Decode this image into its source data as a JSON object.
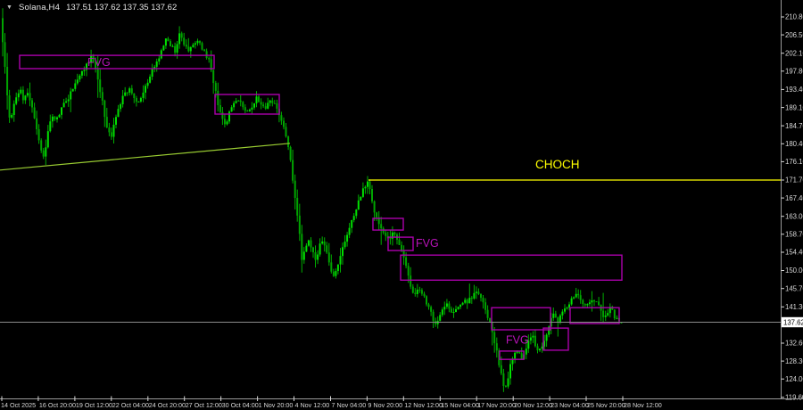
{
  "window": {
    "dropdown_icon": "▼",
    "symbol_period": "Solana,H4",
    "ohlc_text": "137.51 137.62 137.35 137.62"
  },
  "colors": {
    "background": "#000000",
    "candle_up": "#00E000",
    "candle_down": "#00A400",
    "candle_wick": "#00B000",
    "box_border": "#AA00AA",
    "box_label": "#B913B9",
    "choch": "#FFFF00",
    "trendline": "#9ACD32",
    "price_line": "#8A8A8A",
    "axis_text": "#D8D8D8",
    "axis_line": "#9A9A9A",
    "tag_bg": "#FFFFFF",
    "tag_text": "#000000"
  },
  "chart_data": {
    "type": "candlestick",
    "symbol": "Solana",
    "timeframe": "H4",
    "last_bar_ohlc": {
      "open": 137.51,
      "high": 137.62,
      "low": 137.35,
      "close": 137.62
    },
    "current_price": 137.62,
    "ylim": [
      119.6,
      210.8
    ],
    "price_axis": {
      "ticks": [
        210.8,
        206.5,
        202.1,
        197.8,
        193.4,
        189.1,
        184.7,
        180.4,
        176.1,
        171.7,
        167.4,
        163.0,
        158.7,
        154.4,
        150.0,
        145.7,
        141.3,
        137.0,
        132.6,
        128.3,
        124.0,
        119.6
      ],
      "current_tag": "137.62"
    },
    "time_axis": {
      "labels": [
        "14 Oct 2025",
        "16 Oct 20:00",
        "19 Oct 12:00",
        "22 Oct 04:00",
        "24 Oct 20:00",
        "27 Oct 12:00",
        "30 Oct 04:00",
        "1 Nov 20:00",
        "4 Nov 12:00",
        "7 Nov 04:00",
        "9 Nov 20:00",
        "12 Nov 12:00",
        "15 Nov 04:00",
        "17 Nov 20:00",
        "20 Nov 12:00",
        "23 Nov 04:00",
        "25 Nov 20:00",
        "28 Nov 12:00"
      ]
    },
    "bars": {
      "count": 274,
      "first_x": 2,
      "last_x": 698,
      "seed": 11
    },
    "series_anchors": [
      [
        2,
        210.5
      ],
      [
        4,
        206
      ],
      [
        7,
        199
      ],
      [
        10,
        191
      ],
      [
        13,
        185.5
      ],
      [
        16,
        188.5
      ],
      [
        20,
        192
      ],
      [
        24,
        193.5
      ],
      [
        28,
        191
      ],
      [
        32,
        193.5
      ],
      [
        36,
        190
      ],
      [
        40,
        187
      ],
      [
        44,
        182.5
      ],
      [
        48,
        178.5
      ],
      [
        51,
        177.5
      ],
      [
        55,
        183
      ],
      [
        60,
        187.5
      ],
      [
        64,
        186
      ],
      [
        68,
        187.5
      ],
      [
        72,
        189.5
      ],
      [
        77,
        191
      ],
      [
        82,
        193
      ],
      [
        87,
        195.5
      ],
      [
        93,
        197.5
      ],
      [
        99,
        199.5
      ],
      [
        104,
        201.5
      ],
      [
        108,
        199
      ],
      [
        112,
        195
      ],
      [
        117,
        189.5
      ],
      [
        122,
        183.5
      ],
      [
        126,
        182
      ],
      [
        130,
        186
      ],
      [
        135,
        189.5
      ],
      [
        140,
        192
      ],
      [
        146,
        193.5
      ],
      [
        152,
        191.5
      ],
      [
        158,
        190
      ],
      [
        163,
        193
      ],
      [
        168,
        196
      ],
      [
        173,
        198.5
      ],
      [
        178,
        200.5
      ],
      [
        183,
        203
      ],
      [
        188,
        206.5
      ],
      [
        193,
        204
      ],
      [
        198,
        202.5
      ],
      [
        203,
        207
      ],
      [
        207,
        205
      ],
      [
        212,
        202.5
      ],
      [
        217,
        204
      ],
      [
        222,
        205.5
      ],
      [
        227,
        203.5
      ],
      [
        232,
        202
      ],
      [
        237,
        199.5
      ],
      [
        241,
        195
      ],
      [
        246,
        190
      ],
      [
        251,
        186.5
      ],
      [
        255,
        185
      ],
      [
        259,
        188
      ],
      [
        264,
        190.5
      ],
      [
        269,
        191
      ],
      [
        274,
        189.5
      ],
      [
        279,
        188
      ],
      [
        284,
        189.5
      ],
      [
        289,
        191.5
      ],
      [
        294,
        190
      ],
      [
        299,
        189
      ],
      [
        304,
        191
      ],
      [
        309,
        190
      ],
      [
        314,
        187.5
      ],
      [
        319,
        184.5
      ],
      [
        324,
        180.5
      ],
      [
        328,
        175
      ],
      [
        332,
        168
      ],
      [
        336,
        161
      ],
      [
        340,
        152.5
      ],
      [
        344,
        155
      ],
      [
        348,
        157
      ],
      [
        352,
        154.5
      ],
      [
        356,
        152.5
      ],
      [
        360,
        156
      ],
      [
        364,
        157.5
      ],
      [
        368,
        154.5
      ],
      [
        372,
        150.5
      ],
      [
        376,
        148
      ],
      [
        380,
        151.5
      ],
      [
        385,
        155.5
      ],
      [
        390,
        158.5
      ],
      [
        395,
        161.5
      ],
      [
        400,
        164.5
      ],
      [
        405,
        167.5
      ],
      [
        409,
        169.5
      ],
      [
        413,
        171.5
      ],
      [
        417,
        168.5
      ],
      [
        421,
        164.5
      ],
      [
        425,
        162
      ],
      [
        429,
        160.5
      ],
      [
        433,
        158.5
      ],
      [
        437,
        157
      ],
      [
        441,
        159
      ],
      [
        445,
        158.5
      ],
      [
        449,
        156
      ],
      [
        453,
        153.5
      ],
      [
        457,
        150.5
      ],
      [
        461,
        147
      ],
      [
        465,
        143.5
      ],
      [
        469,
        145
      ],
      [
        473,
        145.5
      ],
      [
        477,
        143.5
      ],
      [
        481,
        141.5
      ],
      [
        485,
        139.5
      ],
      [
        489,
        136.8
      ],
      [
        493,
        138.5
      ],
      [
        497,
        140.5
      ],
      [
        501,
        142
      ],
      [
        505,
        141
      ],
      [
        509,
        139.5
      ],
      [
        513,
        140.5
      ],
      [
        517,
        142
      ],
      [
        521,
        143
      ],
      [
        525,
        142
      ],
      [
        529,
        143.5
      ],
      [
        533,
        144.5
      ],
      [
        537,
        145
      ],
      [
        541,
        143
      ],
      [
        545,
        141
      ],
      [
        549,
        138.5
      ],
      [
        553,
        135.5
      ],
      [
        557,
        132
      ],
      [
        561,
        127.5
      ],
      [
        565,
        123
      ],
      [
        568,
        122
      ],
      [
        571,
        124.5
      ],
      [
        574,
        127.5
      ],
      [
        578,
        130
      ],
      [
        582,
        131
      ],
      [
        586,
        128.5
      ],
      [
        590,
        131
      ],
      [
        594,
        133.5
      ],
      [
        598,
        134.5
      ],
      [
        602,
        132
      ],
      [
        606,
        130.5
      ],
      [
        610,
        132.5
      ],
      [
        614,
        135
      ],
      [
        618,
        137.5
      ],
      [
        622,
        139.5
      ],
      [
        626,
        137.5
      ],
      [
        630,
        139
      ],
      [
        634,
        140.5
      ],
      [
        638,
        142
      ],
      [
        642,
        143
      ],
      [
        646,
        144.5
      ],
      [
        650,
        144
      ],
      [
        654,
        142.5
      ],
      [
        658,
        141.5
      ],
      [
        662,
        142.5
      ],
      [
        666,
        143.5
      ],
      [
        670,
        142.5
      ],
      [
        674,
        140.5
      ],
      [
        678,
        139
      ],
      [
        682,
        140
      ],
      [
        686,
        141
      ],
      [
        690,
        139
      ],
      [
        694,
        138
      ],
      [
        698,
        137.6
      ]
    ],
    "objects": {
      "choch_line": {
        "label": "CHOCH",
        "price": 171.7,
        "x_start": 413,
        "x_end": 875,
        "label_x": 600,
        "label_baseline_y": 189
      },
      "trendline": {
        "x1": 0,
        "price1": 174.1,
        "x2": 325,
        "price2": 180.5
      },
      "price_line": {
        "price": 137.62
      },
      "fvg_boxes": [
        {
          "x1": 22,
          "x2": 240,
          "top": 201.6,
          "bottom": 198.4
        },
        {
          "x1": 241,
          "x2": 313,
          "top": 192.2,
          "bottom": 187.5
        },
        {
          "x1": 418,
          "x2": 452,
          "top": 162.5,
          "bottom": 159.7
        },
        {
          "x1": 435,
          "x2": 463,
          "top": 158.0,
          "bottom": 154.8
        },
        {
          "x1": 449,
          "x2": 697,
          "top": 153.7,
          "bottom": 147.7
        },
        {
          "x1": 551,
          "x2": 617,
          "top": 141.1,
          "bottom": 135.8
        },
        {
          "x1": 609,
          "x2": 637,
          "top": 136.2,
          "bottom": 130.9
        },
        {
          "x1": 639,
          "x2": 694,
          "top": 141.1,
          "bottom": 137.3
        },
        {
          "x1": 560,
          "x2": 587,
          "top": 130.7,
          "bottom": 128.7
        }
      ],
      "fvg_labels": [
        {
          "text": "FVG",
          "x": 98,
          "price": 199.9
        },
        {
          "text": "FVG",
          "x": 466,
          "price": 156.5
        },
        {
          "text": "FVG",
          "x": 567,
          "price": 133.3
        }
      ]
    }
  }
}
